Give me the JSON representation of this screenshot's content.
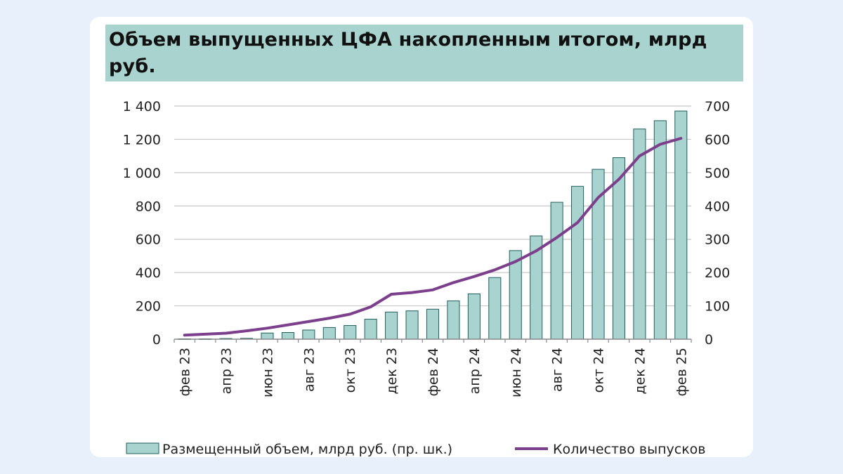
{
  "title": "Объем выпущенных ЦФА накопленным итогом, млрд руб.",
  "chart_data": {
    "type": "bar",
    "categories": [
      "фев 23",
      "мар 23",
      "апр 23",
      "май 23",
      "июн 23",
      "июл 23",
      "авг 23",
      "сен 23",
      "окт 23",
      "ноя 23",
      "дек 23",
      "янв 24",
      "фев 24",
      "мар 24",
      "апр 24",
      "май 24",
      "июн 24",
      "июл 24",
      "авг 24",
      "сен 24",
      "окт 24",
      "ноя 24",
      "дек 24",
      "янв 25",
      "фев 25"
    ],
    "x_tick_labels": [
      "фев 23",
      "апр 23",
      "июн 23",
      "авг 23",
      "окт 23",
      "дек 23",
      "фев 24",
      "апр 24",
      "июн 24",
      "авг 24",
      "окт 24",
      "дек 24",
      "фев 25"
    ],
    "series": [
      {
        "name": "Размещенный объем, млрд руб. (пр. шк.)",
        "type": "bar",
        "axis": "left",
        "color": "#a9d3cf",
        "edge_color": "#1f5e5e",
        "values": [
          2,
          2,
          4,
          5,
          37,
          40,
          55,
          70,
          82,
          120,
          163,
          170,
          180,
          230,
          272,
          370,
          532,
          620,
          822,
          918,
          1020,
          1090,
          1262,
          1312,
          1370
        ]
      },
      {
        "name": "Количество выпусков",
        "type": "line",
        "axis": "right",
        "color": "#7b3f8c",
        "values": [
          12,
          15,
          18,
          25,
          33,
          43,
          53,
          63,
          75,
          97,
          135,
          140,
          148,
          170,
          188,
          208,
          233,
          265,
          305,
          350,
          425,
          480,
          550,
          585,
          603
        ]
      }
    ],
    "y_left": {
      "range": [
        0,
        1400
      ],
      "ticks": [
        "0",
        "200",
        "400",
        "600",
        "800",
        "1 000",
        "1 200",
        "1 400"
      ]
    },
    "y_right": {
      "range": [
        0,
        700
      ],
      "ticks": [
        "0",
        "100",
        "200",
        "300",
        "400",
        "500",
        "600",
        "700"
      ]
    },
    "grid": true,
    "legend_position": "bottom"
  }
}
